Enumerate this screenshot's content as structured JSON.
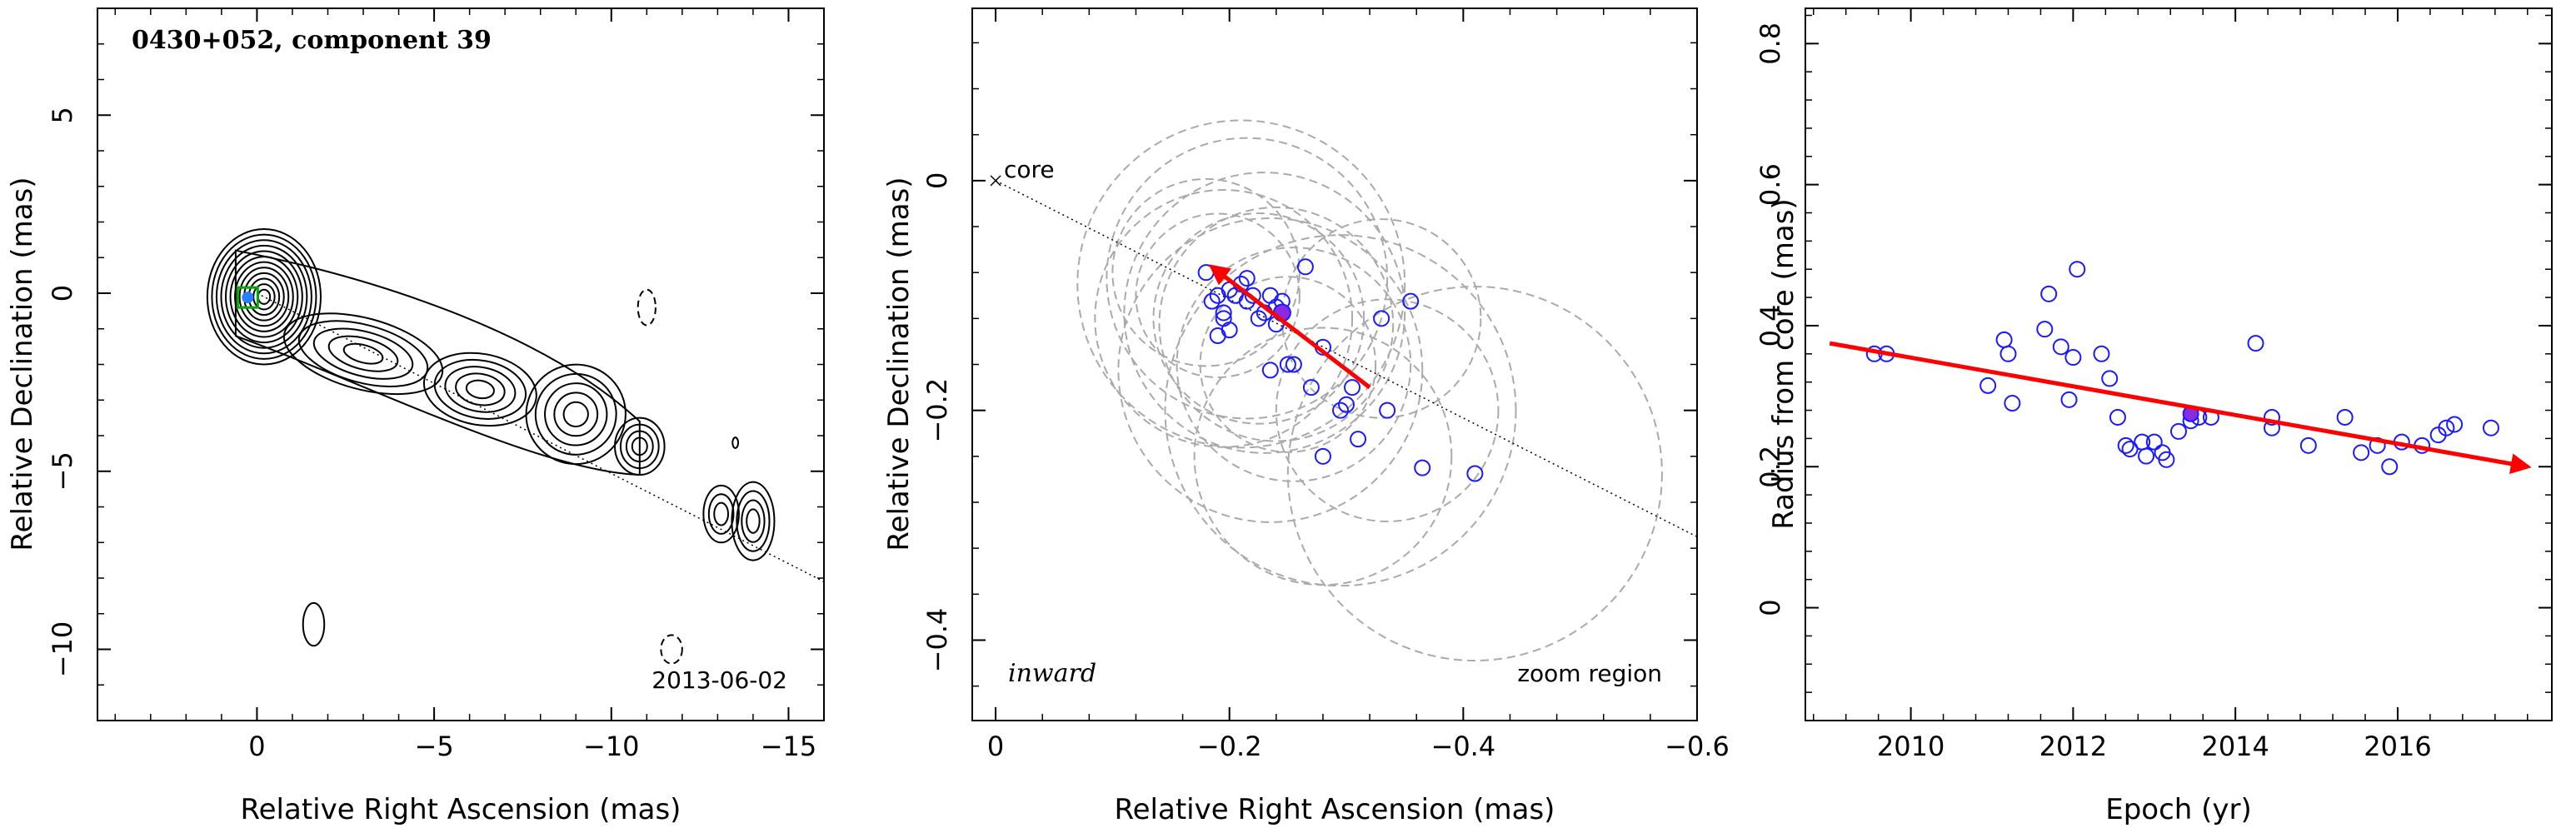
{
  "chart_data": [
    {
      "type": "contour",
      "title": "0430+052, component 39",
      "xlabel": "Relative Right Ascension (mas)",
      "ylabel": "Relative Declination (mas)",
      "xlim": [
        4.5,
        -16
      ],
      "ylim": [
        -12,
        8
      ],
      "xticks": [
        0,
        -5,
        -10,
        -15
      ],
      "xtick_labels": [
        "0",
        "−5",
        "−10",
        "−15"
      ],
      "yticks": [
        -10,
        -5,
        0,
        5
      ],
      "ytick_labels": [
        "−10",
        "−5",
        "0",
        "5"
      ],
      "epoch_label": "2013-06-02",
      "jet_axis": [
        [
          0,
          0
        ],
        [
          -16,
          -8.1
        ]
      ],
      "component_position": [
        -0.24,
        -0.12
      ],
      "contour_levels": 12
    },
    {
      "type": "scatter",
      "xlabel": "Relative Right Ascension (mas)",
      "ylabel": "Relative Declination (mas)",
      "xlim": [
        0.02,
        -0.6
      ],
      "ylim": [
        -0.47,
        0.15
      ],
      "xticks": [
        0,
        -0.2,
        -0.4,
        -0.6
      ],
      "xtick_labels": [
        "0",
        "−0.2",
        "−0.4",
        "−0.6"
      ],
      "yticks": [
        0,
        -0.2,
        -0.4
      ],
      "ytick_labels": [
        "0",
        "−0.2",
        "−0.4"
      ],
      "core_label": "core",
      "inward_label": "inward",
      "zoom_label": "zoom region",
      "jet_axis": [
        [
          0,
          0
        ],
        [
          -0.6,
          -0.31
        ]
      ],
      "x": [
        -0.18,
        -0.185,
        -0.19,
        -0.195,
        -0.2,
        -0.205,
        -0.21,
        -0.215,
        -0.22,
        -0.225,
        -0.23,
        -0.235,
        -0.24,
        -0.2,
        -0.19,
        -0.215,
        -0.245,
        -0.265,
        -0.25,
        -0.28,
        -0.255,
        -0.235,
        -0.24,
        -0.27,
        -0.295,
        -0.305,
        -0.3,
        -0.33,
        -0.31,
        -0.335,
        -0.355,
        -0.28,
        -0.365,
        -0.41,
        -0.195
      ],
      "y": [
        -0.08,
        -0.105,
        -0.1,
        -0.12,
        -0.095,
        -0.1,
        -0.09,
        -0.105,
        -0.1,
        -0.12,
        -0.115,
        -0.1,
        -0.125,
        -0.13,
        -0.135,
        -0.085,
        -0.105,
        -0.075,
        -0.16,
        -0.145,
        -0.16,
        -0.165,
        -0.11,
        -0.18,
        -0.2,
        -0.18,
        -0.195,
        -0.12,
        -0.225,
        -0.2,
        -0.105,
        -0.24,
        -0.25,
        -0.255,
        -0.115
      ],
      "highlight_point": [
        -0.245,
        -0.115
      ],
      "uncertainty_radius": [
        0.08,
        0.11,
        0.14,
        0.09,
        0.1,
        0.12,
        0.075,
        0.13,
        0.15,
        0.085,
        0.095,
        0.11,
        0.16,
        0.07,
        0.12,
        0.1
      ],
      "uncertainty_center_index": [
        0,
        3,
        6,
        9,
        12,
        15,
        18,
        21,
        24,
        27,
        29,
        31,
        33,
        2,
        10,
        20
      ],
      "motion_vector": [
        [
          -0.32,
          -0.18
        ],
        [
          -0.185,
          -0.075
        ]
      ]
    },
    {
      "type": "scatter",
      "xlabel": "Epoch (yr)",
      "ylabel": "Radius from core (mas)",
      "xlim": [
        2008.7,
        2017.9
      ],
      "ylim": [
        -0.16,
        0.85
      ],
      "xticks": [
        2010,
        2012,
        2014,
        2016
      ],
      "xtick_labels": [
        "2010",
        "2012",
        "2014",
        "2016"
      ],
      "yticks": [
        0,
        0.2,
        0.4,
        0.6,
        0.8
      ],
      "ytick_labels": [
        "0",
        "0.2",
        "0.4",
        "0.6",
        "0.8"
      ],
      "x": [
        2009.55,
        2009.7,
        2010.95,
        2011.15,
        2011.2,
        2011.25,
        2011.65,
        2011.7,
        2011.85,
        2011.95,
        2012.0,
        2012.05,
        2012.35,
        2012.45,
        2012.55,
        2012.65,
        2012.7,
        2012.85,
        2012.9,
        2013.0,
        2013.1,
        2013.15,
        2013.3,
        2013.45,
        2013.55,
        2013.7,
        2014.25,
        2014.45,
        2014.45,
        2014.9,
        2015.35,
        2015.55,
        2015.75,
        2015.9,
        2016.05,
        2016.3,
        2016.5,
        2016.6,
        2016.7,
        2017.15
      ],
      "y": [
        0.36,
        0.36,
        0.315,
        0.38,
        0.36,
        0.29,
        0.395,
        0.445,
        0.37,
        0.295,
        0.355,
        0.48,
        0.36,
        0.325,
        0.27,
        0.23,
        0.225,
        0.235,
        0.215,
        0.235,
        0.22,
        0.21,
        0.25,
        0.265,
        0.27,
        0.27,
        0.375,
        0.27,
        0.255,
        0.23,
        0.27,
        0.22,
        0.23,
        0.2,
        0.235,
        0.23,
        0.245,
        0.255,
        0.26,
        0.255
      ],
      "highlight_point": [
        2013.45,
        0.275
      ],
      "fit_line": [
        [
          2009.0,
          0.375
        ],
        [
          2017.6,
          0.2
        ]
      ]
    }
  ]
}
